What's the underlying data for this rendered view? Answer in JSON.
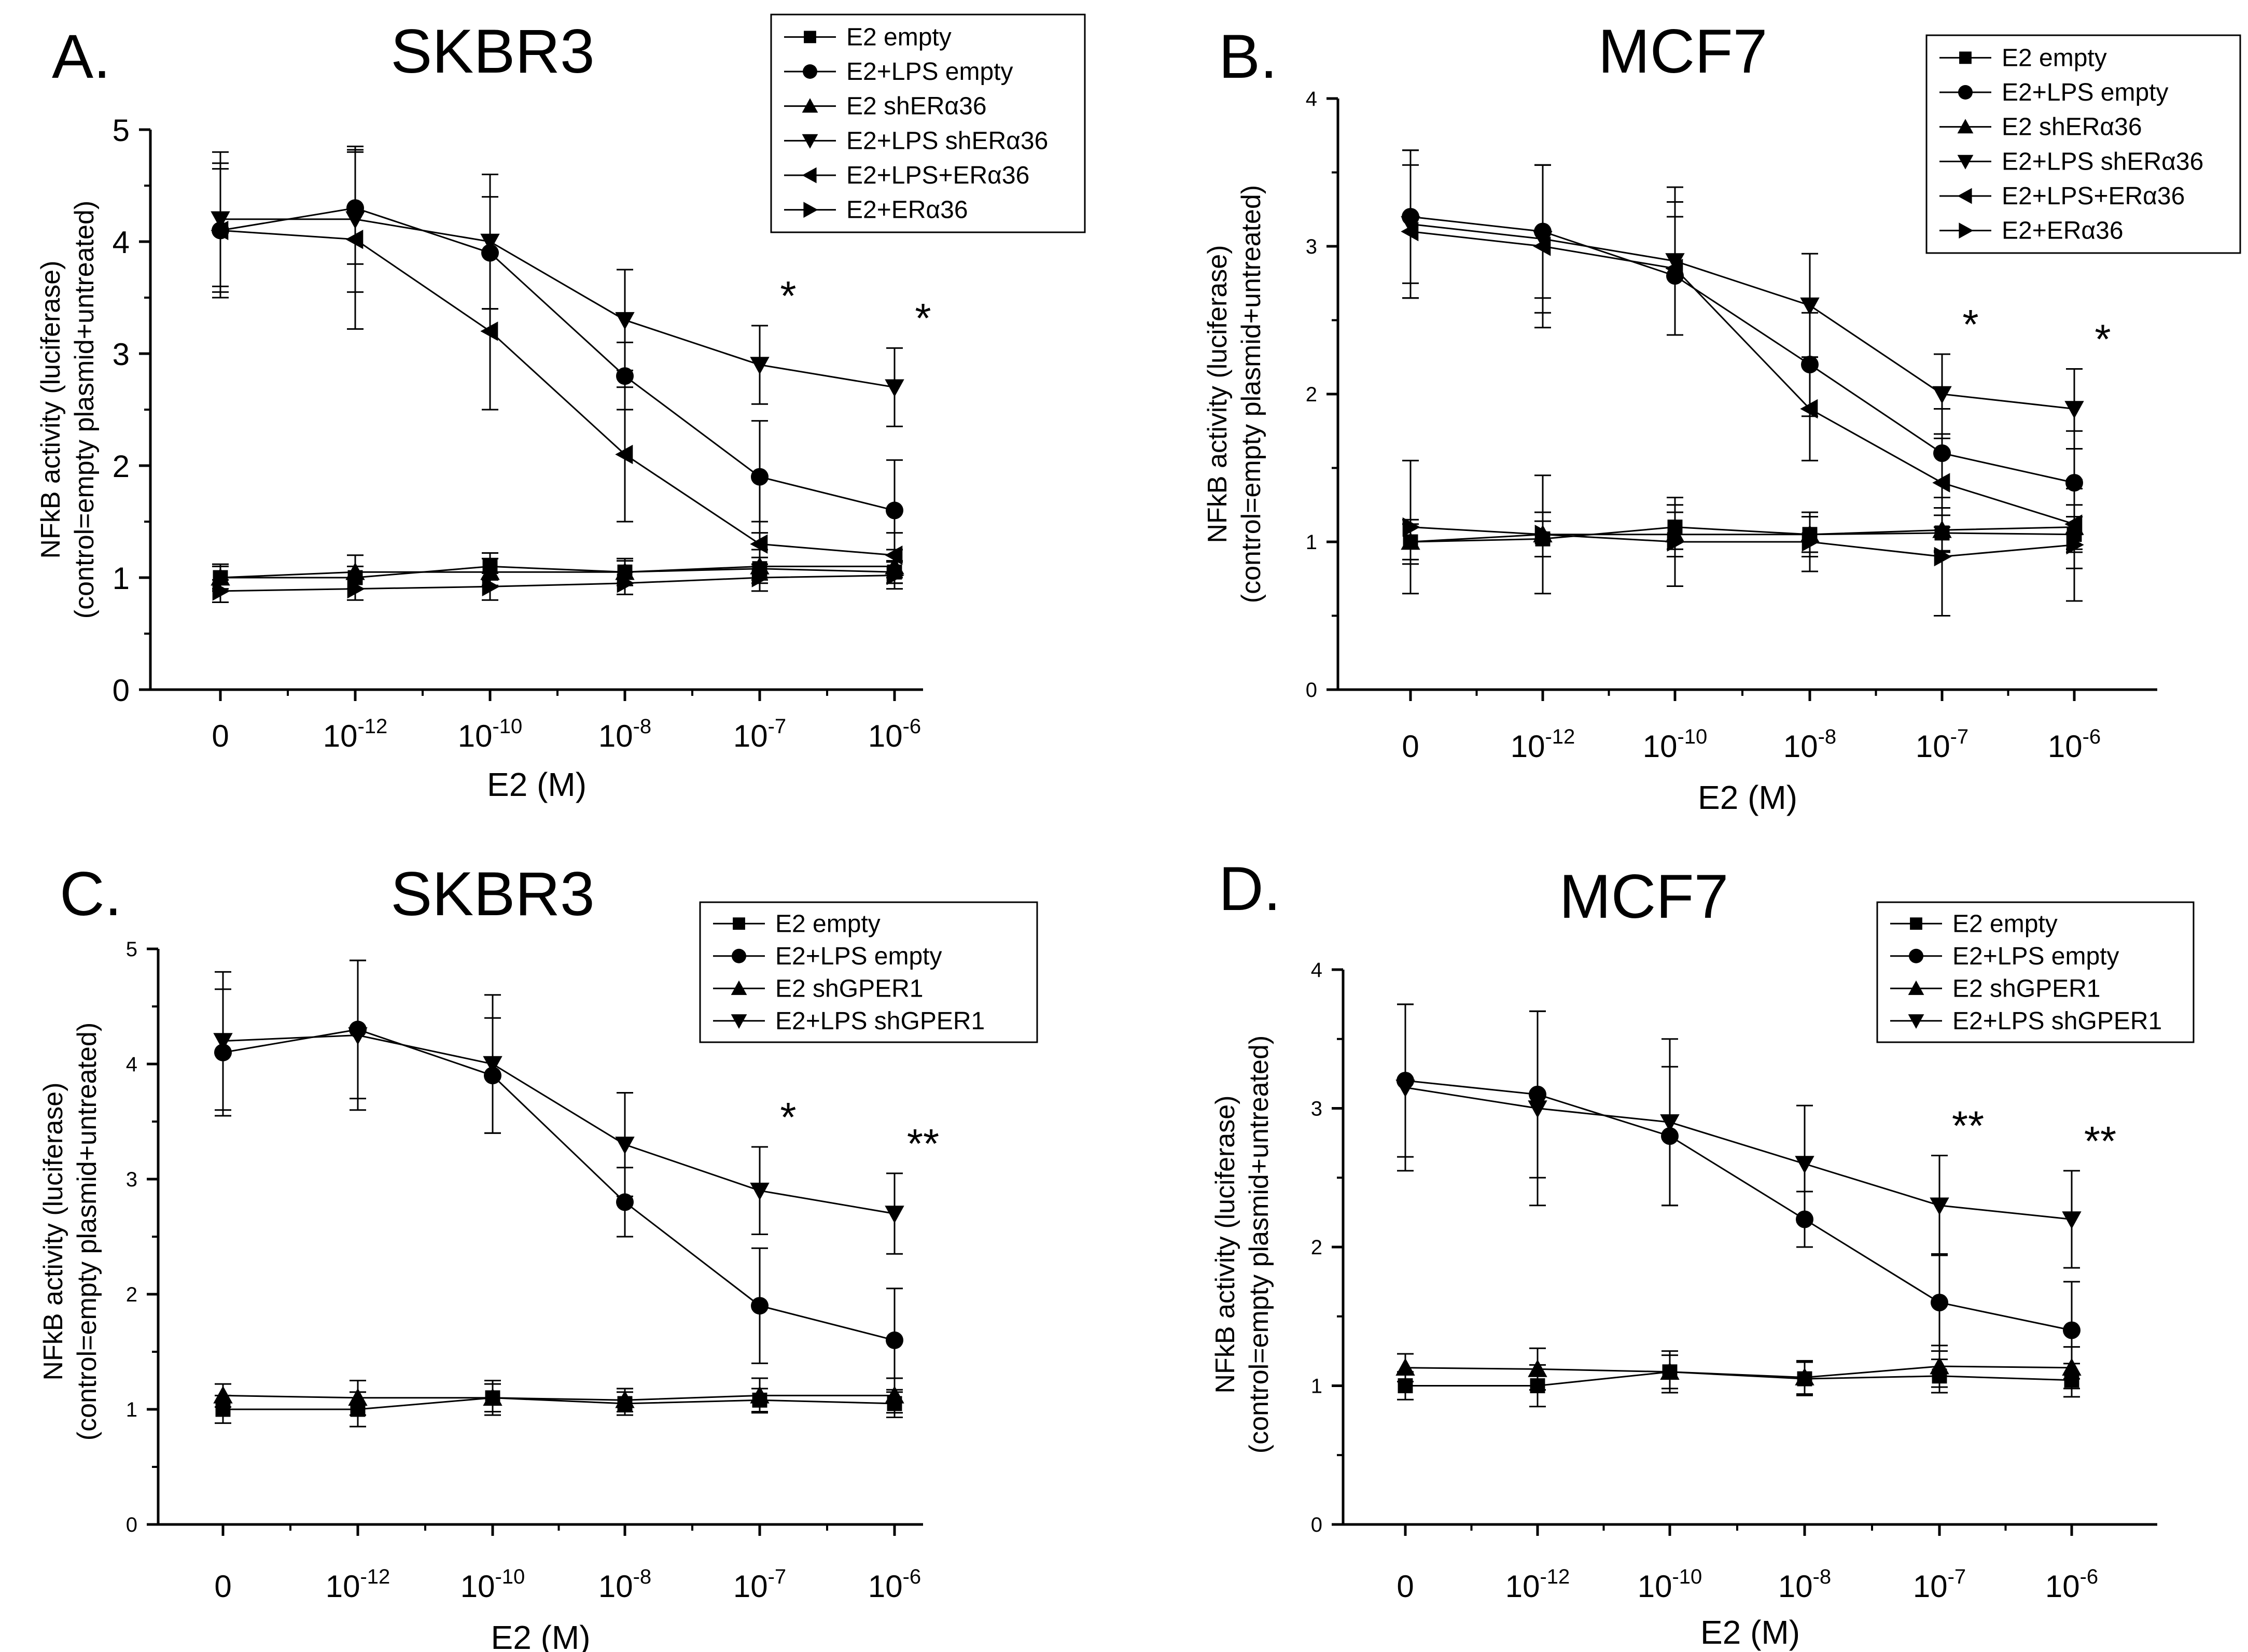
{
  "chart_data": [
    {
      "id": "A",
      "type": "line",
      "panel_label": "A.",
      "title": "SKBR3",
      "xlabel": "E2 (M)",
      "ylabel": [
        "NFkB activity (luciferase)",
        "(control=empty plasmid+untreated)"
      ],
      "categories": [
        "0",
        "10-12",
        "10-10",
        "10-8",
        "10-7",
        "10-6"
      ],
      "category_labels": [
        {
          "base": "0",
          "exp": ""
        },
        {
          "base": "10",
          "exp": "-12"
        },
        {
          "base": "10",
          "exp": "-10"
        },
        {
          "base": "10",
          "exp": "-8"
        },
        {
          "base": "10",
          "exp": "-7"
        },
        {
          "base": "10",
          "exp": "-6"
        }
      ],
      "ylim": [
        0,
        5
      ],
      "yticks": [
        "0",
        "1",
        "2",
        "3",
        "4",
        "5"
      ],
      "legend_position": "top-right",
      "series": [
        {
          "name": "E2 empty",
          "marker": "square",
          "values": [
            1.0,
            1.0,
            1.1,
            1.05,
            1.08,
            1.05
          ],
          "errors": [
            0.1,
            0.1,
            0.12,
            0.1,
            0.1,
            0.1
          ]
        },
        {
          "name": "E2+LPS empty",
          "marker": "circle",
          "values": [
            4.1,
            4.3,
            3.9,
            2.8,
            1.9,
            1.6
          ],
          "errors": [
            0.6,
            0.5,
            0.5,
            0.3,
            0.5,
            0.45
          ]
        },
        {
          "name": "E2 shERα36",
          "marker": "triangle-up",
          "values": [
            1.0,
            1.05,
            1.05,
            1.05,
            1.1,
            1.1
          ],
          "errors": [
            0.12,
            0.15,
            0.12,
            0.12,
            0.15,
            0.15
          ]
        },
        {
          "name": "E2+LPS shERα36",
          "marker": "triangle-down",
          "values": [
            4.2,
            4.2,
            4.0,
            3.3,
            2.9,
            2.7
          ],
          "errors": [
            0.6,
            0.65,
            0.6,
            0.45,
            0.35,
            0.35
          ]
        },
        {
          "name": "E2+LPS+ERα36",
          "marker": "triangle-left",
          "values": [
            4.1,
            4.02,
            3.2,
            2.1,
            1.3,
            1.2
          ],
          "errors": [
            0.55,
            0.8,
            0.7,
            0.6,
            0.2,
            0.2
          ]
        },
        {
          "name": "E2+ERα36",
          "marker": "triangle-right",
          "values": [
            0.88,
            0.9,
            0.92,
            0.95,
            1.0,
            1.02
          ],
          "errors": [
            0.1,
            0.1,
            0.12,
            0.1,
            0.12,
            0.12
          ]
        }
      ],
      "annotations": [
        {
          "category": 4,
          "text": "*"
        },
        {
          "category": 5,
          "text": "*"
        }
      ]
    },
    {
      "id": "B",
      "type": "line",
      "panel_label": "B.",
      "title": "MCF7",
      "xlabel": "E2 (M)",
      "ylabel": [
        "NFkB activity (luciferase)",
        "(control=empty plasmid+untreated)"
      ],
      "categories": [
        "0",
        "10-12",
        "10-10",
        "10-8",
        "10-7",
        "10-6"
      ],
      "category_labels": [
        {
          "base": "0",
          "exp": ""
        },
        {
          "base": "10",
          "exp": "-12"
        },
        {
          "base": "10",
          "exp": "-10"
        },
        {
          "base": "10",
          "exp": "-8"
        },
        {
          "base": "10",
          "exp": "-7"
        },
        {
          "base": "10",
          "exp": "-6"
        }
      ],
      "ylim": [
        0,
        4
      ],
      "yticks": [
        "0",
        "1",
        "2",
        "3",
        "4"
      ],
      "legend_position": "top-right",
      "series": [
        {
          "name": "E2 empty",
          "marker": "square",
          "values": [
            1.0,
            1.02,
            1.1,
            1.05,
            1.06,
            1.05
          ],
          "errors": [
            0.12,
            0.12,
            0.15,
            0.12,
            0.12,
            0.12
          ]
        },
        {
          "name": "E2+LPS empty",
          "marker": "circle",
          "values": [
            3.2,
            3.1,
            2.8,
            2.2,
            1.6,
            1.4
          ],
          "errors": [
            0.45,
            0.45,
            0.4,
            0.35,
            0.3,
            0.35
          ]
        },
        {
          "name": "E2 shERα36",
          "marker": "triangle-up",
          "values": [
            1.0,
            1.05,
            1.05,
            1.05,
            1.08,
            1.1
          ],
          "errors": [
            0.15,
            0.15,
            0.15,
            0.15,
            0.15,
            0.15
          ]
        },
        {
          "name": "E2+LPS shERα36",
          "marker": "triangle-down",
          "values": [
            3.15,
            3.05,
            2.9,
            2.6,
            2.0,
            1.9
          ],
          "errors": [
            0.5,
            0.5,
            0.5,
            0.35,
            0.27,
            0.27
          ]
        },
        {
          "name": "E2+LPS+ERα36",
          "marker": "triangle-left",
          "values": [
            3.1,
            3.0,
            2.85,
            1.9,
            1.4,
            1.12
          ],
          "errors": [
            0.45,
            0.55,
            0.45,
            0.35,
            0.3,
            0.3
          ]
        },
        {
          "name": "E2+ERα36",
          "marker": "triangle-right",
          "values": [
            1.1,
            1.05,
            1.0,
            1.0,
            0.9,
            0.98
          ],
          "errors": [
            0.45,
            0.4,
            0.3,
            0.2,
            0.4,
            0.38
          ]
        }
      ],
      "annotations": [
        {
          "category": 4,
          "text": "*"
        },
        {
          "category": 5,
          "text": "*"
        }
      ]
    },
    {
      "id": "C",
      "type": "line",
      "panel_label": "C.",
      "title": "SKBR3",
      "xlabel": "E2 (M)",
      "ylabel": [
        "NFkB activity (luciferase)",
        "(control=empty plasmid+untreated)"
      ],
      "categories": [
        "0",
        "10-12",
        "10-10",
        "10-8",
        "10-7",
        "10-6"
      ],
      "category_labels": [
        {
          "base": "0",
          "exp": ""
        },
        {
          "base": "10",
          "exp": "-12"
        },
        {
          "base": "10",
          "exp": "-10"
        },
        {
          "base": "10",
          "exp": "-8"
        },
        {
          "base": "10",
          "exp": "-7"
        },
        {
          "base": "10",
          "exp": "-6"
        }
      ],
      "ylim": [
        0,
        5
      ],
      "yticks": [
        "0",
        "1",
        "2",
        "3",
        "4",
        "5"
      ],
      "legend_position": "top-right",
      "series": [
        {
          "name": "E2 empty",
          "marker": "square",
          "values": [
            1.0,
            1.0,
            1.1,
            1.05,
            1.08,
            1.05
          ],
          "errors": [
            0.12,
            0.15,
            0.15,
            0.1,
            0.1,
            0.12
          ]
        },
        {
          "name": "E2+LPS empty",
          "marker": "circle",
          "values": [
            4.1,
            4.3,
            3.9,
            2.8,
            1.9,
            1.6
          ],
          "errors": [
            0.55,
            0.6,
            0.5,
            0.3,
            0.5,
            0.45
          ]
        },
        {
          "name": "E2 shGPER1",
          "marker": "triangle-up",
          "values": [
            1.12,
            1.1,
            1.1,
            1.08,
            1.12,
            1.12
          ],
          "errors": [
            0.1,
            0.15,
            0.12,
            0.1,
            0.15,
            0.15
          ]
        },
        {
          "name": "E2+LPS shGPER1",
          "marker": "triangle-down",
          "values": [
            4.2,
            4.25,
            4.0,
            3.3,
            2.9,
            2.7
          ],
          "errors": [
            0.6,
            0.65,
            0.6,
            0.45,
            0.38,
            0.35
          ]
        }
      ],
      "annotations": [
        {
          "category": 4,
          "text": "*"
        },
        {
          "category": 5,
          "text": "**"
        }
      ]
    },
    {
      "id": "D",
      "type": "line",
      "panel_label": "D.",
      "title": "MCF7",
      "xlabel": "E2 (M)",
      "ylabel": [
        "NFkB activity (luciferase)",
        "(control=empty plasmid+untreated)"
      ],
      "categories": [
        "0",
        "10-12",
        "10-10",
        "10-8",
        "10-7",
        "10-6"
      ],
      "category_labels": [
        {
          "base": "0",
          "exp": ""
        },
        {
          "base": "10",
          "exp": "-12"
        },
        {
          "base": "10",
          "exp": "-10"
        },
        {
          "base": "10",
          "exp": "-8"
        },
        {
          "base": "10",
          "exp": "-7"
        },
        {
          "base": "10",
          "exp": "-6"
        }
      ],
      "ylim": [
        0,
        4
      ],
      "yticks": [
        "0",
        "1",
        "2",
        "3",
        "4"
      ],
      "legend_position": "top-right",
      "series": [
        {
          "name": "E2 empty",
          "marker": "square",
          "values": [
            1.0,
            1.0,
            1.1,
            1.05,
            1.07,
            1.04
          ],
          "errors": [
            0.1,
            0.15,
            0.15,
            0.12,
            0.12,
            0.12
          ]
        },
        {
          "name": "E2+LPS empty",
          "marker": "circle",
          "values": [
            3.2,
            3.1,
            2.8,
            2.2,
            1.6,
            1.4
          ],
          "errors": [
            0.55,
            0.6,
            0.5,
            0.2,
            0.35,
            0.35
          ]
        },
        {
          "name": "E2 shGPER1",
          "marker": "triangle-up",
          "values": [
            1.13,
            1.12,
            1.1,
            1.06,
            1.14,
            1.13
          ],
          "errors": [
            0.1,
            0.15,
            0.12,
            0.12,
            0.15,
            0.15
          ]
        },
        {
          "name": "E2+LPS shGPER1",
          "marker": "triangle-down",
          "values": [
            3.15,
            3.0,
            2.9,
            2.6,
            2.3,
            2.2
          ],
          "errors": [
            0.6,
            0.7,
            0.6,
            0.42,
            0.36,
            0.35
          ]
        }
      ],
      "annotations": [
        {
          "category": 4,
          "text": "**"
        },
        {
          "category": 5,
          "text": "**"
        }
      ]
    }
  ]
}
